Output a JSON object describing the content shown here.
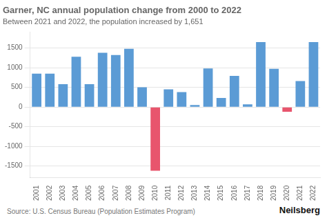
{
  "chart_data": {
    "type": "bar",
    "title": "Garner, NC annual population change from 2000 to 2022",
    "subtitle": "Between 2021 and 2022, the population increased by 1,651",
    "source": "Source: U.S. Census Bureau (Population Estimates Program)",
    "branding": "Neilsberg",
    "categories": [
      "2001",
      "2002",
      "2003",
      "2004",
      "2005",
      "2006",
      "2007",
      "2008",
      "2009",
      "2010",
      "2011",
      "2012",
      "2013",
      "2014",
      "2015",
      "2016",
      "2017",
      "2018",
      "2019",
      "2020",
      "2021",
      "2022"
    ],
    "values": [
      850,
      850,
      580,
      1280,
      580,
      1380,
      1320,
      1480,
      500,
      -1620,
      450,
      380,
      50,
      980,
      230,
      790,
      70,
      1650,
      970,
      -120,
      660,
      1651
    ],
    "colors": [
      "#5b9bd5",
      "#5b9bd5",
      "#5b9bd5",
      "#5b9bd5",
      "#5b9bd5",
      "#5b9bd5",
      "#5b9bd5",
      "#5b9bd5",
      "#5b9bd5",
      "#e8556d",
      "#5b9bd5",
      "#5b9bd5",
      "#5b9bd5",
      "#5b9bd5",
      "#5b9bd5",
      "#5b9bd5",
      "#5b9bd5",
      "#5b9bd5",
      "#5b9bd5",
      "#e8556d",
      "#5b9bd5",
      "#5b9bd5"
    ],
    "ylim": [
      -1800,
      1900
    ],
    "yticks": [
      -1500,
      -1000,
      -500,
      0,
      500,
      1000,
      1500
    ],
    "grid": "y"
  }
}
